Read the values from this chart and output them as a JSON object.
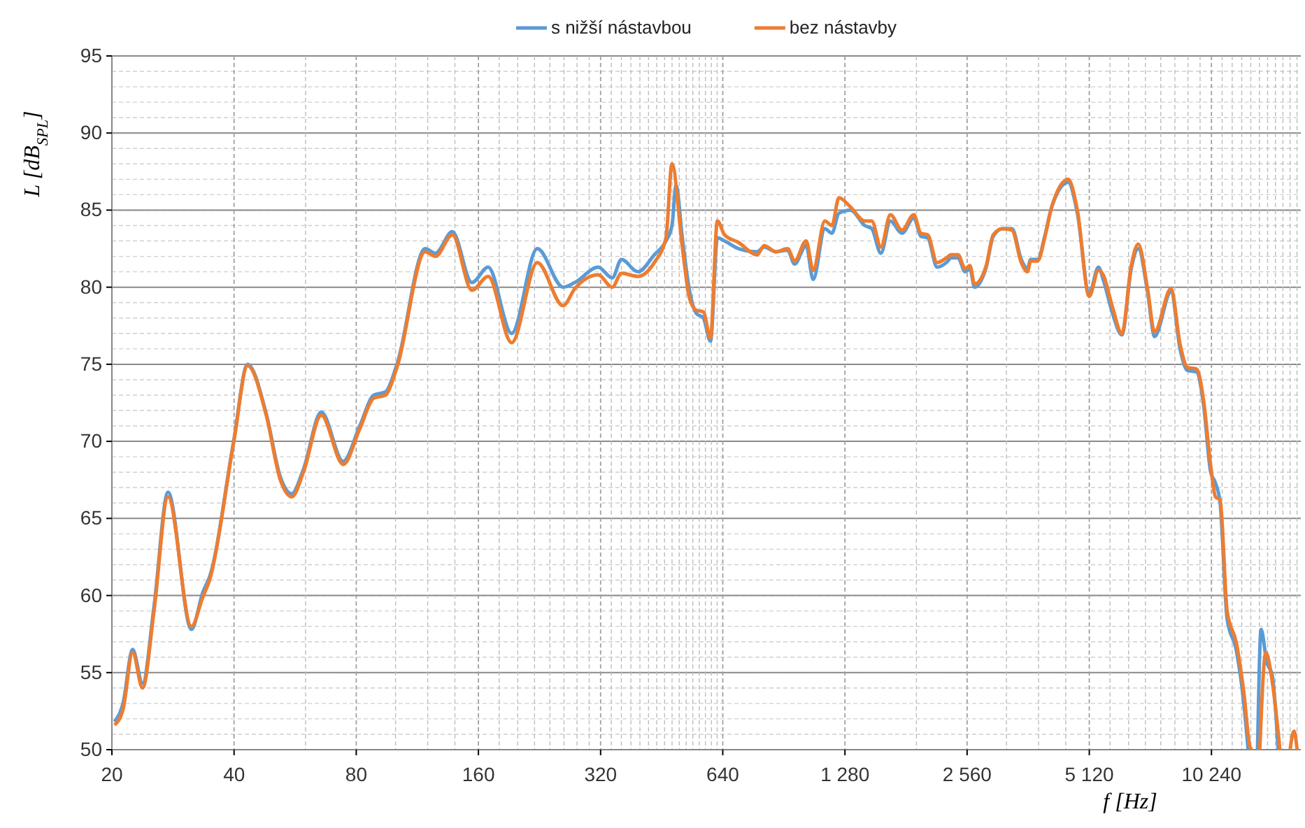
{
  "chart_data": {
    "type": "line",
    "xlabel": "f [Hz]",
    "ylabel": "L [dB$_{SPL}$]",
    "log": "x",
    "grid": true,
    "legend": "top",
    "line_style": "solid",
    "marker": "none",
    "xlim": [
      20,
      17000
    ],
    "ylim": [
      50,
      95
    ],
    "xticks": [
      20,
      40,
      80,
      160,
      320,
      640,
      {
        "value": 1280,
        "label": "1 280"
      },
      {
        "value": 2560,
        "label": "2 560"
      },
      {
        "value": 5120,
        "label": "5 120"
      },
      {
        "value": 10240,
        "label": "10 240"
      }
    ],
    "yticks": [
      50,
      55,
      60,
      65,
      70,
      75,
      80,
      85,
      90,
      95
    ],
    "series": [
      {
        "name": "s nižší nástavbou",
        "color": "#5b9bd5",
        "x": [
          20.3,
          21.3,
          22.5,
          23.8,
          25.4,
          27.5,
          31.4,
          33.5,
          34.9,
          39.9,
          43.2,
          48.0,
          52.0,
          55.5,
          59.3,
          65.6,
          74.3,
          81.6,
          88.4,
          94.4,
          100.8,
          118.3,
          125.4,
          138.0,
          154.2,
          169.1,
          193.2,
          223.5,
          258.7,
          276.4,
          315.6,
          341.8,
          360.2,
          395.5,
          434.1,
          463.7,
          479.8,
          491,
          508.8,
          529.7,
          551.1,
          573.3,
          596.8,
          620.9,
          646.3,
          700,
          777.7,
          809.5,
          865,
          924.7,
          962,
          1027,
          1069,
          1142,
          1189,
          1237,
          1322,
          1432,
          1490,
          1570,
          1656,
          1769,
          1892,
          1969,
          2047,
          2159,
          2277,
          2338,
          2432,
          2531,
          2601,
          2670,
          2853,
          2969,
          3131,
          3302,
          3481,
          3605,
          3672,
          3820,
          3976,
          4137,
          4542,
          4785,
          5117,
          5394,
          5541,
          5841,
          6160,
          6496,
          6761,
          7126,
          7415,
          8139,
          8583,
          8935,
          9413,
          9799,
          10196,
          10476,
          10756,
          11190,
          11800,
          12280,
          12610,
          13000,
          13300,
          13570,
          14010,
          14460,
          14950
        ],
        "values": [
          51.8,
          53.0,
          56.5,
          54.3,
          59.3,
          66.7,
          57.8,
          60.2,
          61.3,
          70.0,
          75.0,
          71.8,
          67.7,
          66.6,
          68.2,
          71.9,
          68.7,
          71.0,
          73.0,
          73.2,
          75.0,
          82.5,
          82.2,
          83.6,
          80.3,
          81.3,
          77.0,
          82.5,
          80.0,
          80.3,
          81.3,
          80.6,
          81.8,
          81.0,
          82.1,
          83.0,
          84.0,
          86.6,
          83.2,
          79.8,
          78.3,
          78.0,
          76.5,
          83.2,
          83.0,
          82.5,
          82.3,
          82.6,
          82.3,
          82.4,
          81.5,
          82.7,
          80.5,
          83.8,
          83.5,
          84.8,
          85.0,
          84.0,
          83.8,
          82.2,
          84.3,
          83.5,
          84.5,
          83.3,
          83.2,
          81.3,
          81.6,
          81.9,
          81.9,
          81.0,
          81.2,
          80.0,
          81.3,
          83.3,
          83.8,
          83.8,
          81.8,
          81.2,
          81.8,
          81.8,
          83.3,
          85.2,
          86.8,
          84.8,
          79.6,
          81.3,
          80.5,
          78.3,
          76.9,
          81.2,
          82.5,
          79.7,
          76.8,
          79.7,
          75.9,
          74.6,
          74.5,
          72.3,
          68.0,
          67.3,
          66.0,
          58.5,
          56.4,
          53.2,
          50,
          null,
          50,
          57.8,
          55.7,
          54.8,
          50
        ]
      },
      {
        "name": "bez nástavby",
        "color": "#ed7d31",
        "x": [
          20.3,
          21.3,
          22.5,
          23.8,
          25.4,
          27.5,
          31.4,
          33.5,
          34.9,
          39.9,
          43.2,
          48.0,
          52.0,
          55.5,
          59.3,
          65.6,
          74.3,
          81.6,
          88.4,
          94.4,
          100.8,
          118.3,
          125.4,
          138.0,
          154.2,
          169.1,
          193.2,
          223.5,
          258.7,
          276.4,
          315.6,
          341.8,
          360.2,
          395.5,
          434.1,
          463.7,
          479.8,
          508.8,
          529.7,
          551.1,
          573.3,
          596.8,
          620.9,
          646.3,
          700,
          777.7,
          809.5,
          865,
          924.7,
          962,
          1027,
          1069,
          1142,
          1189,
          1237,
          1322,
          1432,
          1490,
          1570,
          1656,
          1769,
          1892,
          1969,
          2047,
          2159,
          2277,
          2338,
          2432,
          2531,
          2601,
          2670,
          2853,
          2969,
          3131,
          3302,
          3481,
          3605,
          3672,
          3820,
          3976,
          4137,
          4542,
          4785,
          5117,
          5394,
          5541,
          5841,
          6160,
          6496,
          6761,
          7126,
          7415,
          8139,
          8583,
          8935,
          9413,
          9799,
          10196,
          10476,
          10756,
          11190,
          11800,
          12280,
          12775,
          12910,
          13200,
          13470,
          13940,
          14460,
          15100,
          15500,
          16000,
          16350,
          16650
        ],
        "values": [
          51.6,
          52.6,
          56.3,
          54.0,
          59.0,
          66.4,
          58.0,
          59.9,
          61.1,
          69.9,
          74.9,
          71.7,
          67.5,
          66.4,
          68.0,
          71.7,
          68.5,
          70.8,
          72.8,
          73.0,
          74.8,
          82.3,
          82.0,
          83.4,
          79.8,
          80.7,
          76.4,
          81.6,
          78.8,
          79.9,
          80.8,
          80.0,
          80.9,
          80.7,
          81.6,
          83.2,
          88.0,
          82.6,
          79.3,
          78.5,
          78.4,
          76.7,
          84.3,
          83.4,
          82.9,
          82.1,
          82.7,
          82.3,
          82.5,
          81.7,
          83.0,
          81.1,
          84.3,
          84.0,
          85.8,
          85.2,
          84.3,
          84.3,
          82.6,
          84.7,
          83.7,
          84.7,
          83.5,
          83.4,
          81.6,
          81.9,
          82.1,
          82.1,
          81.2,
          81.4,
          80.2,
          81.4,
          83.4,
          83.8,
          83.7,
          81.6,
          81.0,
          81.7,
          81.7,
          83.2,
          85.2,
          87.0,
          85.0,
          79.4,
          81.1,
          80.8,
          78.7,
          77.0,
          81.4,
          82.8,
          79.9,
          77.1,
          79.9,
          76.2,
          74.8,
          74.7,
          72.6,
          68.4,
          66.4,
          66.2,
          59.0,
          56.9,
          53.9,
          50.1,
          50,
          null,
          50,
          56.3,
          54.4,
          50,
          null,
          50,
          51.2,
          50
        ]
      }
    ]
  }
}
